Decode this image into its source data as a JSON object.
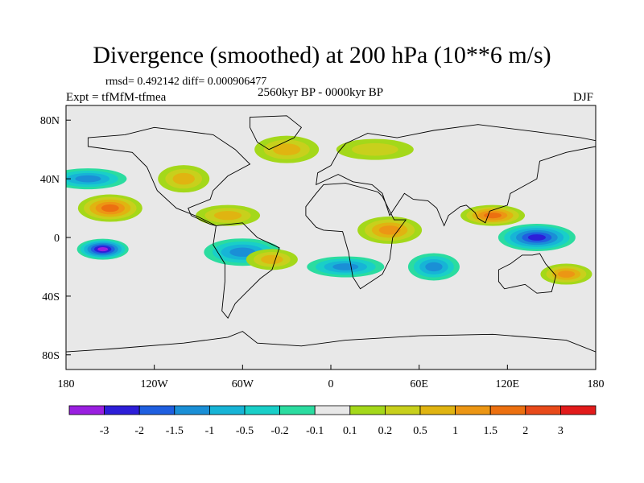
{
  "chart_data": {
    "type": "heatmap",
    "title": "Divergence (smoothed) at 200 hPa (10**6 m/s)",
    "stats_text": "rmsd= 0.492142 diff= 0.000906477",
    "period_label": "2560kyr BP - 0000kyr BP",
    "experiment_label": "Expt = tfMfM-tfmea",
    "season_label": "DJF",
    "x_range": [
      -180,
      180
    ],
    "y_range": [
      -90,
      90
    ],
    "x_ticks": [
      {
        "value": -180,
        "label": "180"
      },
      {
        "value": -120,
        "label": "120W"
      },
      {
        "value": -60,
        "label": "60W"
      },
      {
        "value": 0,
        "label": "0"
      },
      {
        "value": 60,
        "label": "60E"
      },
      {
        "value": 120,
        "label": "120E"
      },
      {
        "value": 180,
        "label": "180"
      }
    ],
    "y_ticks": [
      {
        "value": 80,
        "label": "80N"
      },
      {
        "value": 40,
        "label": "40N"
      },
      {
        "value": 0,
        "label": "0"
      },
      {
        "value": -40,
        "label": "40S"
      },
      {
        "value": -80,
        "label": "80S"
      }
    ],
    "colorbar": {
      "levels": [
        -3,
        -2,
        -1.5,
        -1,
        -0.5,
        -0.2,
        -0.1,
        0.1,
        0.2,
        0.5,
        1,
        1.5,
        2,
        3
      ],
      "labels": [
        "-3",
        "-2",
        "-1.5",
        "-1",
        "-0.5",
        "-0.2",
        "-0.1",
        "0.1",
        "0.2",
        "0.5",
        "1",
        "1.5",
        "2",
        "3"
      ],
      "colors": [
        "#9a1fe0",
        "#2d1ed8",
        "#1f5fe0",
        "#1a8fd6",
        "#17b4d6",
        "#19cfc8",
        "#2bdca0",
        "#e8e8e8",
        "#a4d81a",
        "#c8d01c",
        "#e0b411",
        "#ec9614",
        "#ec7010",
        "#e84a1a",
        "#e21b1b"
      ]
    },
    "anomaly_regions": [
      {
        "lon": -155,
        "lat": -8,
        "value": -3
      },
      {
        "lon": -150,
        "lat": 20,
        "value": 1.5
      },
      {
        "lon": -165,
        "lat": 40,
        "value": -1
      },
      {
        "lon": -100,
        "lat": 40,
        "value": 0.5
      },
      {
        "lon": -70,
        "lat": 15,
        "value": 0.5
      },
      {
        "lon": -60,
        "lat": -10,
        "value": -1
      },
      {
        "lon": -40,
        "lat": -15,
        "value": 0.5
      },
      {
        "lon": 40,
        "lat": 5,
        "value": 1
      },
      {
        "lon": 10,
        "lat": -20,
        "value": -1
      },
      {
        "lon": 70,
        "lat": -20,
        "value": -1
      },
      {
        "lon": 110,
        "lat": 15,
        "value": 1.5
      },
      {
        "lon": 140,
        "lat": 0,
        "value": -2
      },
      {
        "lon": 160,
        "lat": -25,
        "value": 1
      },
      {
        "lon": -30,
        "lat": 60,
        "value": 0.5
      },
      {
        "lon": 30,
        "lat": 60,
        "value": 0.2
      }
    ]
  }
}
